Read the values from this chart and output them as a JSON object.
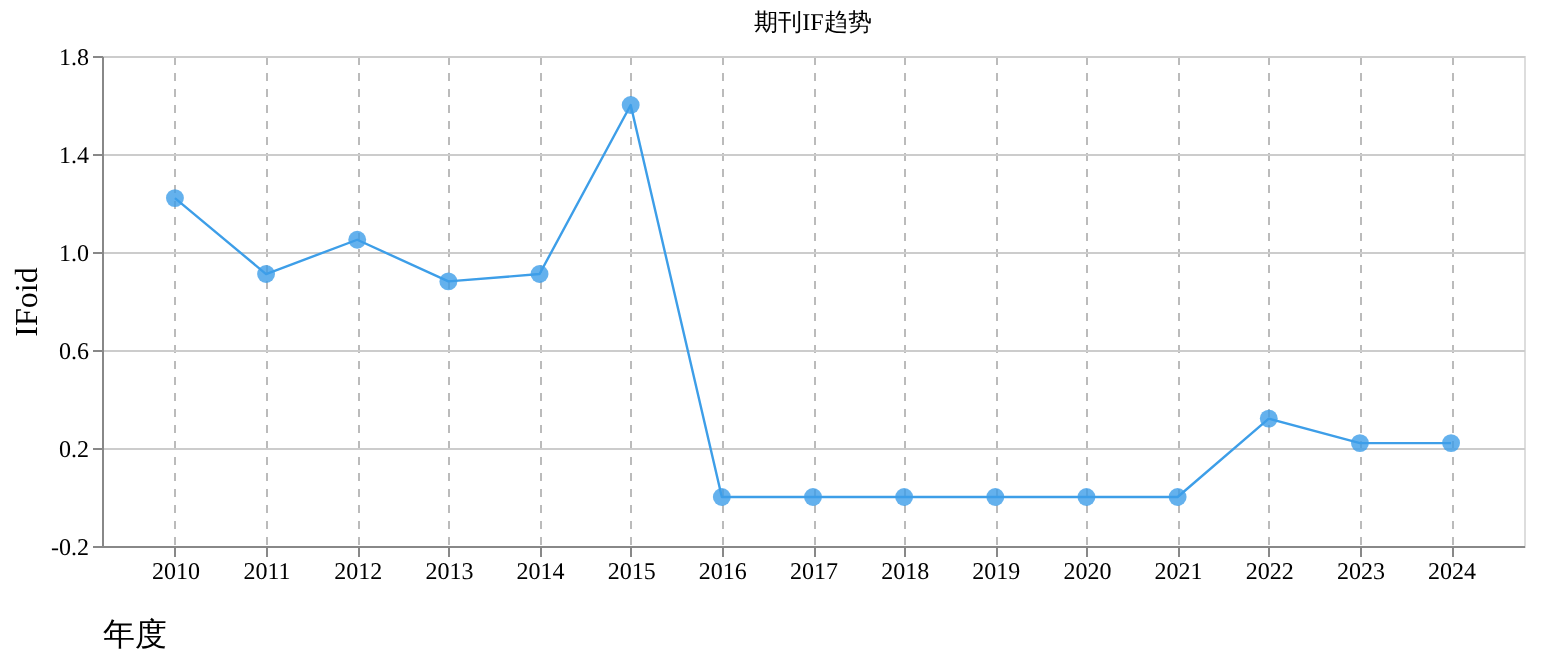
{
  "chart_data": {
    "type": "line",
    "title": "期刊IF趋势",
    "xlabel": "年度",
    "ylabel": "IFoid",
    "categories": [
      "2010",
      "2011",
      "2012",
      "2013",
      "2014",
      "2015",
      "2016",
      "2017",
      "2018",
      "2019",
      "2020",
      "2021",
      "2022",
      "2023",
      "2024"
    ],
    "series": [
      {
        "color": "#3d9ee8",
        "values": [
          1.22,
          0.91,
          1.05,
          0.88,
          0.91,
          1.6,
          0,
          0,
          0,
          0,
          0,
          0,
          0.32,
          0.22,
          0.22
        ]
      }
    ],
    "ylim": [
      -0.2,
      1.8
    ],
    "yticks": [
      -0.2,
      0.2,
      0.6,
      {
        "value": 1,
        "label": "1.0"
      },
      1.4,
      1.8
    ],
    "grid": true,
    "marker": "circle",
    "line_style": "solid"
  }
}
